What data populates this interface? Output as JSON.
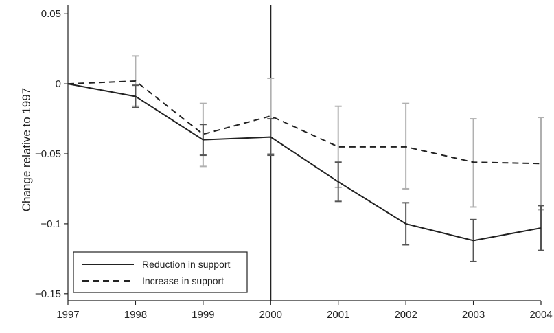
{
  "chart_data": {
    "type": "line",
    "title": "",
    "xlabel": "",
    "ylabel": "Change relative to 1997",
    "x": [
      1997,
      1998,
      1999,
      2000,
      2001,
      2002,
      2003,
      2004
    ],
    "xlim": [
      1997,
      2004
    ],
    "ylim": [
      -0.155,
      0.056
    ],
    "yticks": [
      0.05,
      0,
      -0.05,
      -0.1,
      -0.15
    ],
    "ytick_labels": [
      "0.05",
      "0",
      "−0.05",
      "−0.1",
      "−0.15"
    ],
    "xtick_labels": [
      "1997",
      "1998",
      "1999",
      "2000",
      "2001",
      "2002",
      "2003",
      "2004"
    ],
    "vline": 2000,
    "grid": false,
    "legend_position": "bottom-left",
    "series": [
      {
        "name": "Reduction in support",
        "style": "solid",
        "color": "#222222",
        "errorbar_color": "#555555",
        "values": [
          0,
          -0.009,
          -0.04,
          -0.038,
          -0.07,
          -0.1,
          -0.112,
          -0.103
        ],
        "ci_low": [
          null,
          -0.017,
          -0.051,
          -0.051,
          -0.084,
          -0.115,
          -0.127,
          -0.119
        ],
        "ci_high": [
          null,
          -0.001,
          -0.029,
          -0.025,
          -0.056,
          -0.085,
          -0.097,
          -0.087
        ]
      },
      {
        "name": "Increase in support",
        "style": "dashed",
        "color": "#222222",
        "errorbar_color": "#b0b0b0",
        "values": [
          0,
          0.002,
          -0.036,
          -0.023,
          -0.045,
          -0.045,
          -0.056,
          -0.057
        ],
        "ci_low": [
          null,
          -0.016,
          -0.059,
          -0.05,
          -0.074,
          -0.075,
          -0.088,
          -0.09
        ],
        "ci_high": [
          null,
          0.02,
          -0.014,
          0.004,
          -0.016,
          -0.014,
          -0.025,
          -0.024
        ]
      }
    ]
  }
}
